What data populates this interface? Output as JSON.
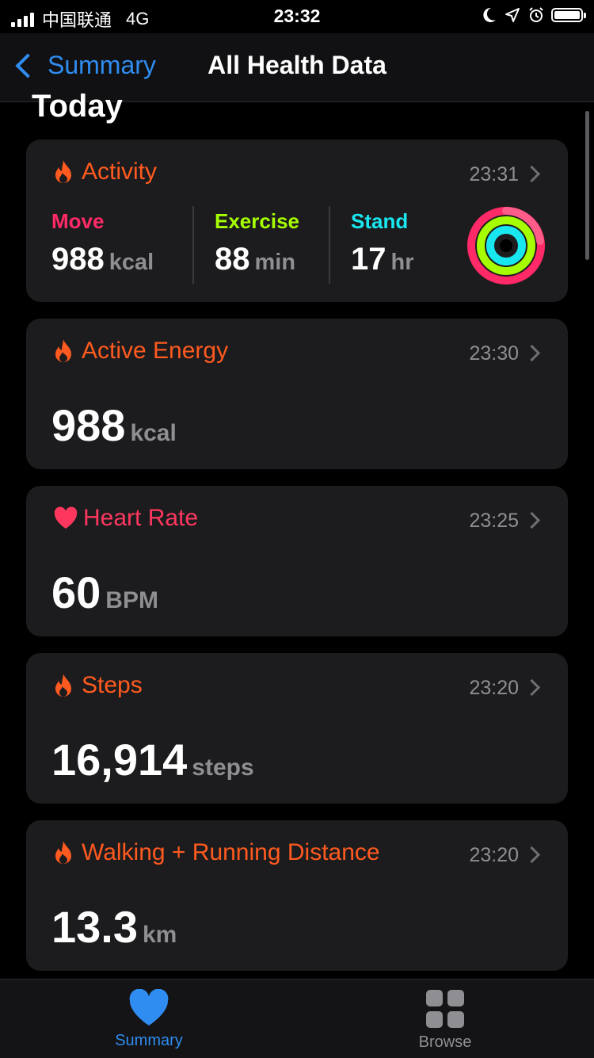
{
  "status": {
    "carrier": "中国联通",
    "network": "4G",
    "time": "23:32"
  },
  "nav": {
    "back_label": "Summary",
    "title": "All Health Data"
  },
  "section_title": "Today",
  "activity": {
    "title": "Activity",
    "time": "23:31",
    "move": {
      "label": "Move",
      "value": "988",
      "unit": "kcal"
    },
    "exercise": {
      "label": "Exercise",
      "value": "88",
      "unit": "min"
    },
    "stand": {
      "label": "Stand",
      "value": "17",
      "unit": "hr"
    }
  },
  "cards": [
    {
      "title": "Active Energy",
      "time": "23:30",
      "value": "988",
      "unit": "kcal",
      "icon": "flame-icon"
    },
    {
      "title": "Heart Rate",
      "time": "23:25",
      "value": "60",
      "unit": "BPM",
      "icon": "heart-icon"
    },
    {
      "title": "Steps",
      "time": "23:20",
      "value": "16,914",
      "unit": "steps",
      "icon": "flame-icon"
    },
    {
      "title": "Walking + Running Distance",
      "time": "23:20",
      "value": "13.3",
      "unit": "km",
      "icon": "flame-icon"
    }
  ],
  "tabs": {
    "summary": "Summary",
    "browse": "Browse"
  },
  "colors": {
    "accent_orange": "#ff5a1f",
    "move": "#ff2a67",
    "exercise": "#a6ff00",
    "stand": "#19e7f0",
    "link_blue": "#2f8cf0",
    "heart": "#ff375f"
  }
}
